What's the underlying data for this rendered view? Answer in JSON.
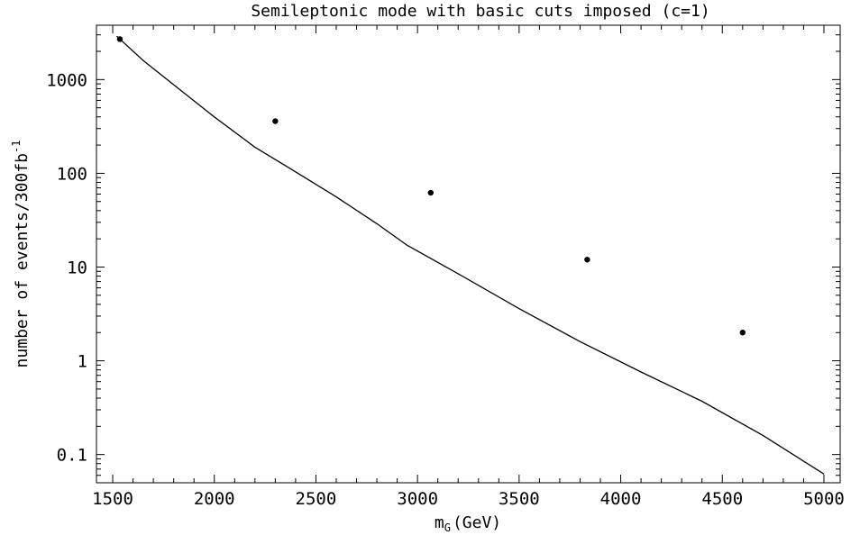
{
  "chart_data": {
    "type": "scatter",
    "title": "Semileptonic mode with basic cuts imposed (c=1)",
    "xlabel": "m",
    "xlabel_subscript": "G",
    "xlabel_unit": "(GeV)",
    "ylabel": "number of events/300fb",
    "ylabel_superscript": "-1",
    "yscale": "log",
    "xlim": [
      1420,
      5080
    ],
    "ylim": [
      0.05,
      3800
    ],
    "xticks": [
      {
        "value": 1500,
        "label": "1500"
      },
      {
        "value": 2000,
        "label": "2000"
      },
      {
        "value": 2500,
        "label": "2500"
      },
      {
        "value": 3000,
        "label": "3000"
      },
      {
        "value": 3500,
        "label": "3500"
      },
      {
        "value": 4000,
        "label": "4000"
      },
      {
        "value": 4500,
        "label": "4500"
      },
      {
        "value": 5000,
        "label": "5000"
      }
    ],
    "yticks": [
      {
        "value": 0.1,
        "label": "0.1"
      },
      {
        "value": 1,
        "label": "1"
      },
      {
        "value": 10,
        "label": "10"
      },
      {
        "value": 100,
        "label": "100"
      },
      {
        "value": 1000,
        "label": "1000"
      }
    ],
    "series": [
      {
        "kind": "line",
        "x": [
          1520,
          1650,
          1800,
          2000,
          2200,
          2380,
          2600,
          2800,
          2950,
          3200,
          3500,
          3800,
          4100,
          4400,
          4700,
          5000
        ],
        "y": [
          2900,
          1600,
          880,
          400,
          190,
          110,
          56,
          29,
          17,
          8.5,
          3.6,
          1.6,
          0.76,
          0.37,
          0.16,
          0.062
        ]
      },
      {
        "kind": "points",
        "x": [
          1535,
          2300,
          3065,
          3835,
          4600
        ],
        "y": [
          2700,
          360,
          62,
          12,
          2.0
        ]
      }
    ]
  }
}
